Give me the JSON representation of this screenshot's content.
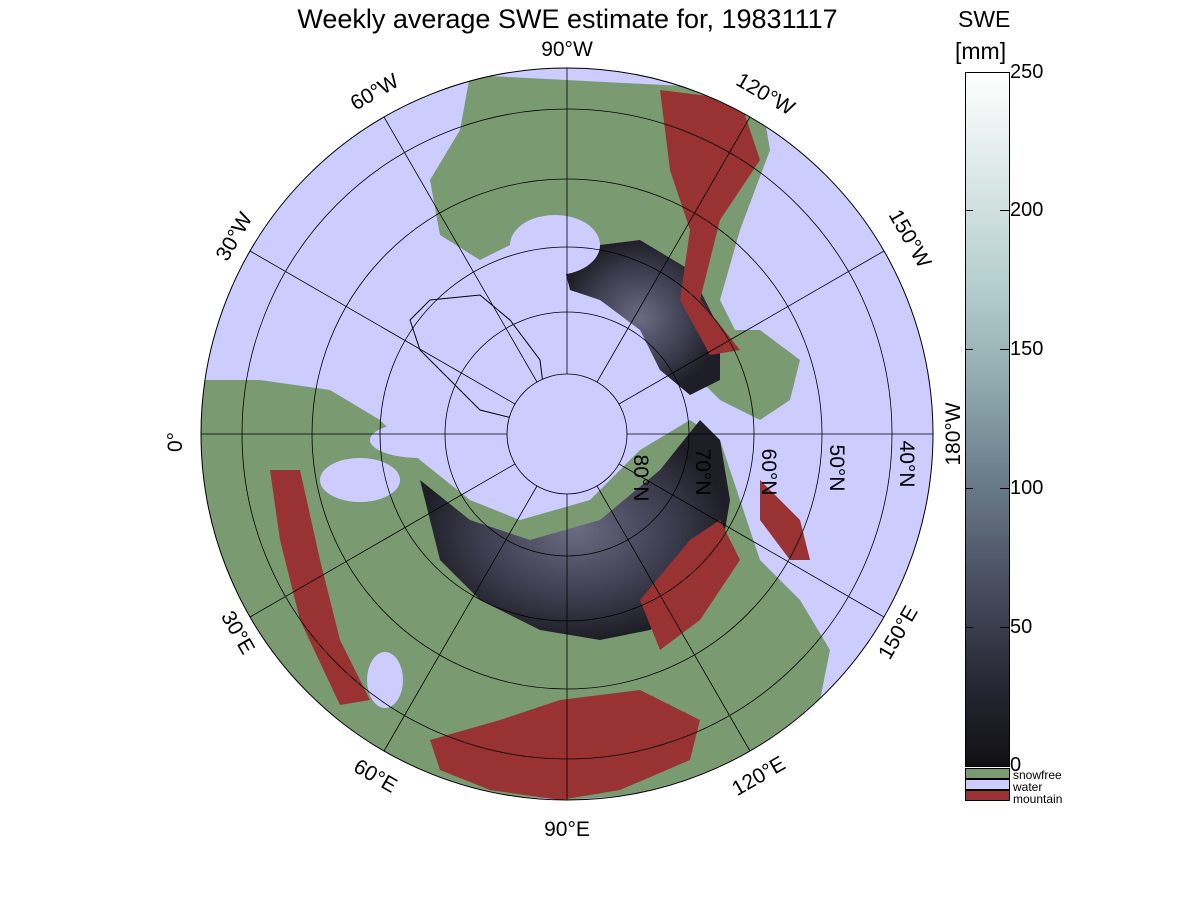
{
  "title": "Weekly average SWE estimate for, 19831117",
  "colorbar": {
    "unit_line1": "SWE",
    "unit_line2": "[mm]",
    "ticks": [
      "250",
      "200",
      "150",
      "100",
      "50",
      "0"
    ],
    "range": [
      0,
      250
    ],
    "categories": [
      {
        "label": "snowfree",
        "color": "#7a9a72"
      },
      {
        "label": "water",
        "color": "#ccccff"
      },
      {
        "label": "mountain",
        "color": "#993333"
      }
    ]
  },
  "map": {
    "projection": "north-polar-stereographic",
    "longitude_labels": [
      "90°W",
      "60°W",
      "30°W",
      "0°",
      "30°E",
      "60°E",
      "90°E",
      "120°E",
      "150°E",
      "180°W",
      "150°W",
      "120°W"
    ],
    "latitude_labels": [
      "80°N",
      "70°N",
      "60°N",
      "50°N",
      "40°N"
    ],
    "colors": {
      "water": "#ccccff",
      "land_snowfree": "#7a9a72",
      "mountain": "#993333",
      "snow_low": "#1a1a22",
      "snow_mid": "#4a4a5e",
      "grid": "#000000"
    }
  }
}
